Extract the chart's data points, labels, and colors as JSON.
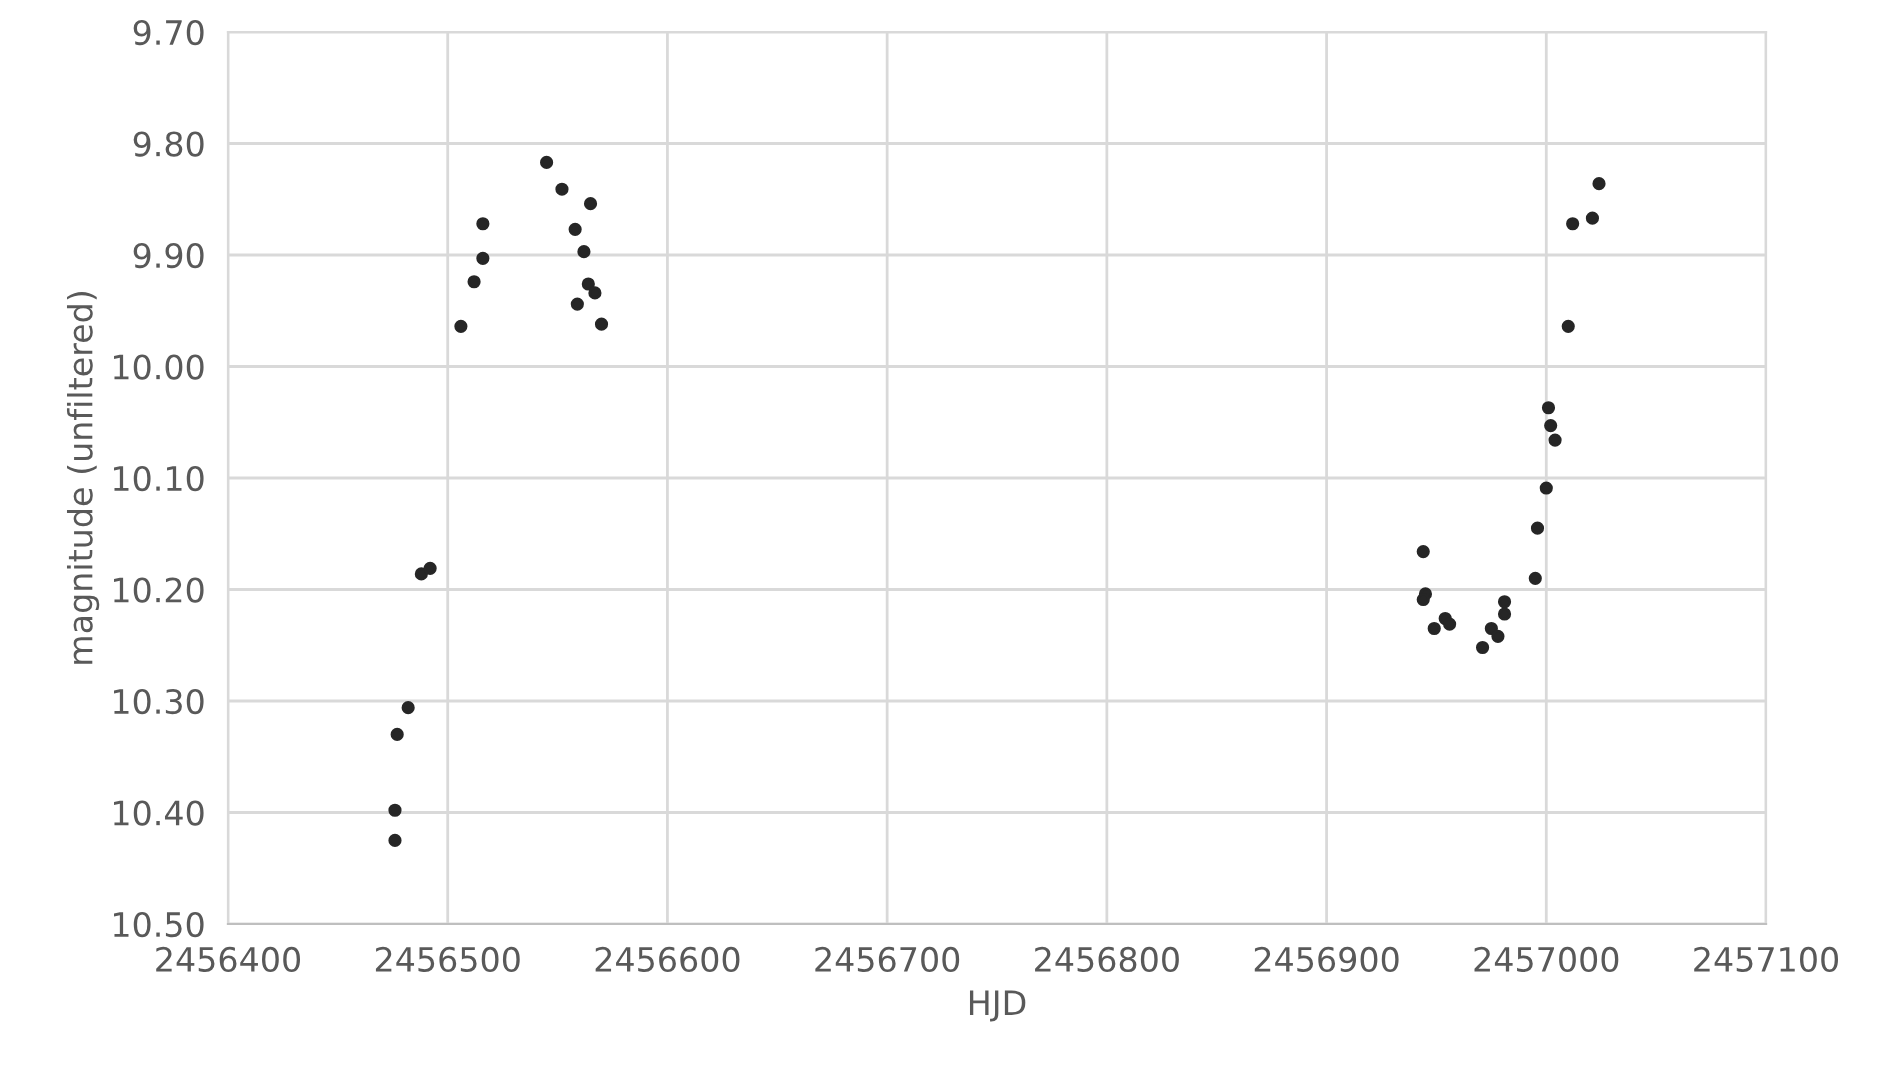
{
  "chart_data": {
    "type": "scatter",
    "xlabel": "HJD",
    "ylabel": "magnitude (unfiltered)",
    "series": [
      {
        "color": "#262626",
        "x": [
          2456476,
          2456476,
          2456477,
          2456482,
          2456488,
          2456492,
          2456506,
          2456512,
          2456516,
          2456516,
          2456545,
          2456552,
          2456565,
          2456558,
          2456562,
          2456564,
          2456567,
          2456559,
          2456570,
          2456944,
          2456945,
          2456944,
          2456954,
          2456956,
          2456949,
          2456981,
          2456981,
          2456975,
          2456978,
          2456971,
          2456995,
          2456996,
          2457000,
          2457004,
          2457002,
          2457001,
          2457010,
          2457012,
          2457021,
          2457024
        ],
        "values": [
          10.425,
          10.398,
          10.33,
          10.306,
          10.186,
          10.181,
          9.964,
          9.924,
          9.903,
          9.872,
          9.817,
          9.841,
          9.854,
          9.877,
          9.897,
          9.926,
          9.934,
          9.944,
          9.962,
          10.166,
          10.204,
          10.209,
          10.226,
          10.231,
          10.235,
          10.211,
          10.222,
          10.235,
          10.242,
          10.252,
          10.19,
          10.145,
          10.109,
          10.066,
          10.053,
          10.037,
          9.964,
          9.872,
          9.867,
          9.836
        ]
      }
    ],
    "xlim": [
      2456400,
      2457100
    ],
    "xticks": [
      2456400,
      2456500,
      2456600,
      2456700,
      2456800,
      2456900,
      2457000,
      2457100
    ],
    "ylim": [
      10.5,
      9.7
    ],
    "yticks": [
      {
        "value": 9.7,
        "label": "9.70"
      },
      {
        "value": 9.8,
        "label": "9.80"
      },
      {
        "value": 9.9,
        "label": "9.90"
      },
      {
        "value": 10.0,
        "label": "10.00"
      },
      {
        "value": 10.1,
        "label": "10.10"
      },
      {
        "value": 10.2,
        "label": "10.20"
      },
      {
        "value": 10.3,
        "label": "10.30"
      },
      {
        "value": 10.4,
        "label": "10.40"
      },
      {
        "value": 10.5,
        "label": "10.50"
      }
    ],
    "grid": true,
    "marker": "circle"
  }
}
